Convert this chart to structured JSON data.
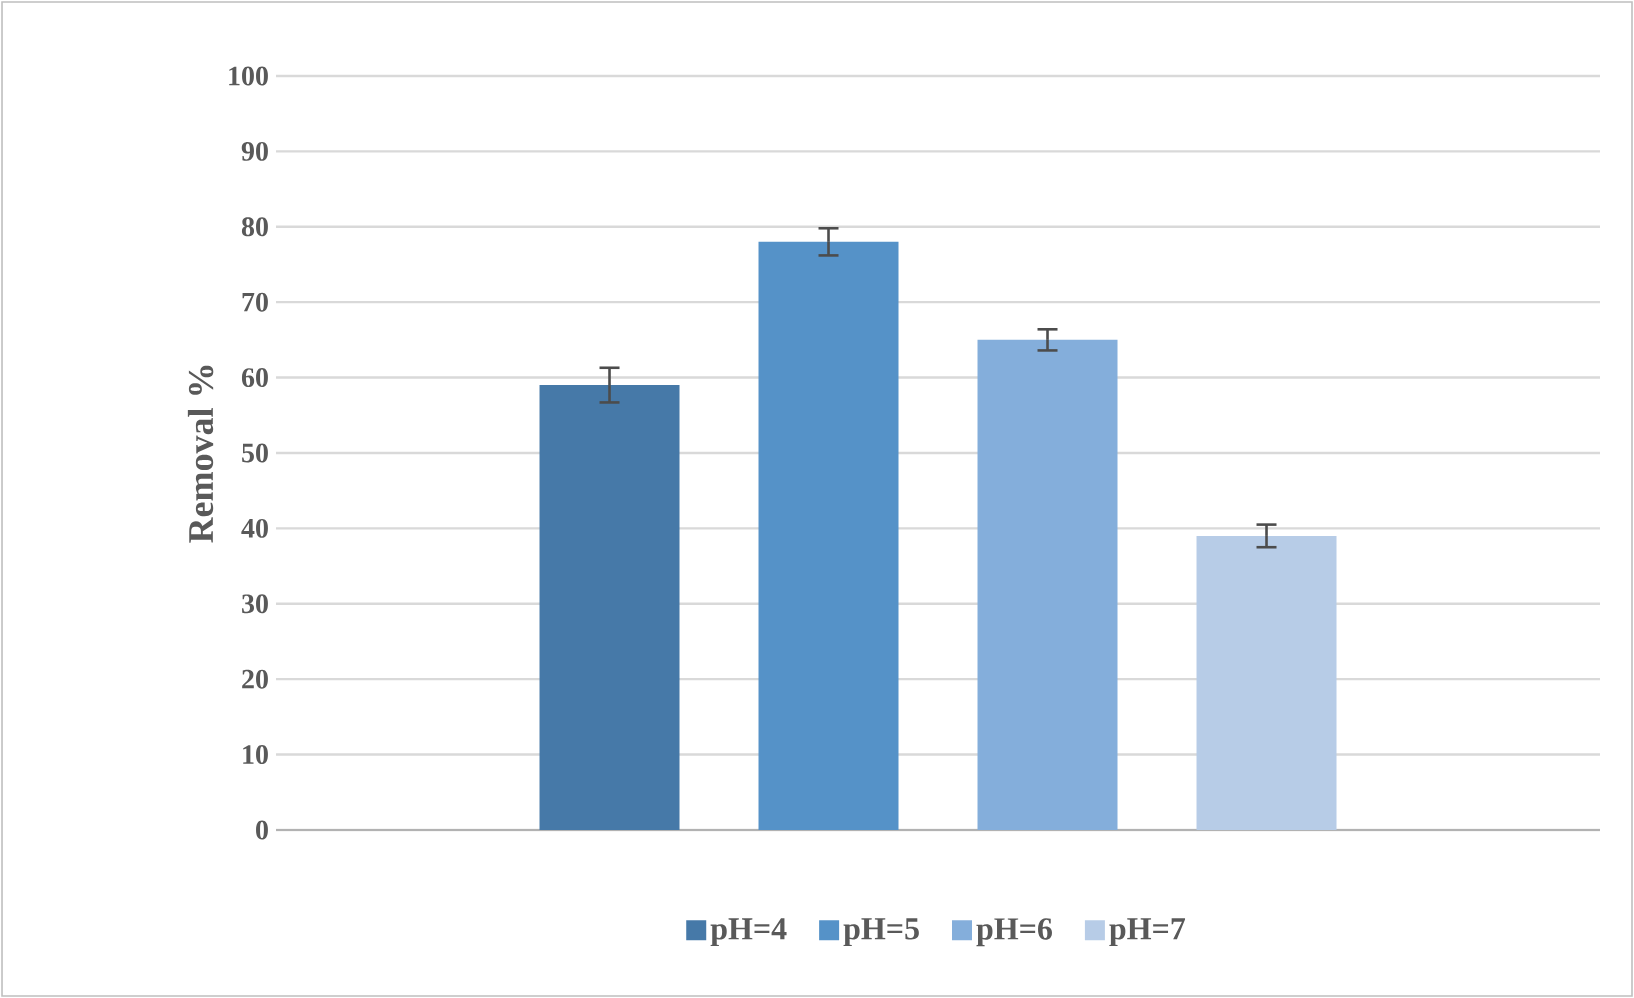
{
  "chart_data": {
    "type": "bar",
    "ylabel": "Removal %",
    "categories": [
      null
    ],
    "series": [
      {
        "name": "pH=4",
        "color": "#4679a8",
        "values": [
          59
        ],
        "errors": [
          2.3
        ]
      },
      {
        "name": "pH=5",
        "color": "#5592c8",
        "values": [
          78
        ],
        "errors": [
          1.8
        ]
      },
      {
        "name": "pH=6",
        "color": "#84aedb",
        "values": [
          65
        ],
        "errors": [
          1.4
        ]
      },
      {
        "name": "pH=7",
        "color": "#b7cce7",
        "values": [
          39
        ],
        "errors": [
          1.5
        ]
      }
    ],
    "ylim": [
      0,
      100
    ],
    "yticks": [
      0,
      10,
      20,
      30,
      40,
      50,
      60,
      70,
      80,
      90,
      100
    ],
    "grid": "y",
    "legend": "bottom"
  }
}
